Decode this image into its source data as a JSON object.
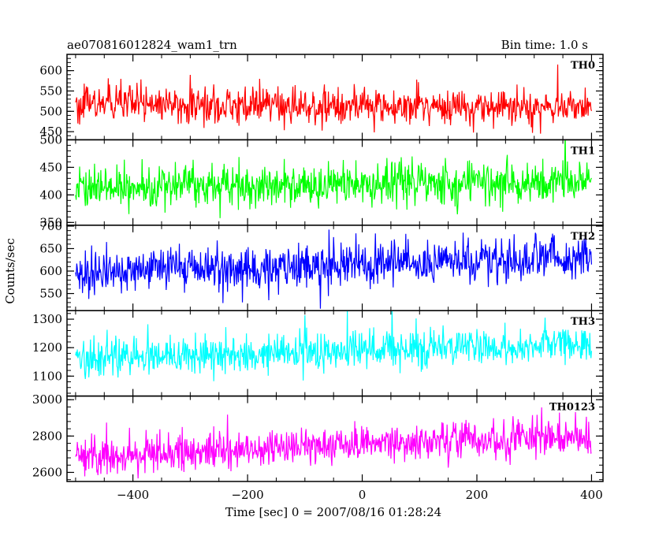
{
  "header": {
    "left_title": "ae070816012824_wam1_trn",
    "right_title": "Bin time: 1.0 s"
  },
  "chart_data": {
    "type": "line",
    "title": "ae070816012824_wam1_trn",
    "subtitle": "Bin time: 1.0 s",
    "xlabel": "Time [sec] 0 = 2007/08/16 01:28:24",
    "ylabel": "Counts/sec",
    "xlim": [
      -515,
      420
    ],
    "x_ticks": [
      -400,
      -200,
      0,
      200,
      400
    ],
    "x_tick_labels": [
      "−400",
      "−200",
      "0",
      "200",
      "400"
    ],
    "x_range_data": [
      -500,
      400
    ],
    "grid": false,
    "legend": "none",
    "panels": [
      {
        "label": "TH0",
        "color": "#ff0000",
        "ylim": [
          430,
          640
        ],
        "y_ticks": [
          450,
          500,
          550,
          600
        ],
        "y_tick_labels": [
          "450",
          "500",
          "550",
          "600"
        ],
        "mean_start": 517,
        "mean_end": 510,
        "noise_sd": 22
      },
      {
        "label": "TH1",
        "color": "#00ff00",
        "ylim": [
          345,
          500
        ],
        "y_ticks": [
          350,
          400,
          450,
          500
        ],
        "y_tick_labels": [
          "350",
          "400",
          "450",
          "500"
        ],
        "mean_start": 413,
        "mean_end": 425,
        "noise_sd": 19
      },
      {
        "label": "TH2",
        "color": "#0000ff",
        "ylim": [
          512,
          702
        ],
        "y_ticks": [
          550,
          600,
          650,
          700
        ],
        "y_tick_labels": [
          "550",
          "600",
          "650",
          "700"
        ],
        "mean_start": 595,
        "mean_end": 630,
        "noise_sd": 24
      },
      {
        "label": "TH3",
        "color": "#00ffff",
        "ylim": [
          1030,
          1330
        ],
        "y_ticks": [
          1100,
          1200,
          1300
        ],
        "y_tick_labels": [
          "1100",
          "1200",
          "1300"
        ],
        "mean_start": 1160,
        "mean_end": 1215,
        "noise_sd": 34
      },
      {
        "label": "TH0123",
        "color": "#ff00ff",
        "ylim": [
          2550,
          3020
        ],
        "y_ticks": [
          2600,
          2800,
          3000
        ],
        "y_tick_labels": [
          "2600",
          "2800",
          "3000"
        ],
        "mean_start": 2690,
        "mean_end": 2800,
        "noise_sd": 52
      }
    ]
  }
}
